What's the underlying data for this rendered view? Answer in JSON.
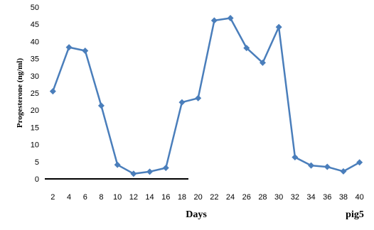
{
  "chart_data": {
    "type": "line",
    "xlabel": "Days",
    "ylabel": "Progesterone (ng/ml)",
    "annotation": "pig5",
    "x": [
      2,
      4,
      6,
      8,
      10,
      12,
      14,
      16,
      18,
      20,
      22,
      24,
      26,
      28,
      30,
      32,
      34,
      36,
      38,
      40
    ],
    "series": [
      {
        "values": [
          25.5,
          38.3,
          37.3,
          21.3,
          4.1,
          1.5,
          2.1,
          3.2,
          22.3,
          23.5,
          46.1,
          46.8,
          38.1,
          33.8,
          44.2,
          6.3,
          3.9,
          3.5,
          2.2,
          4.8
        ]
      }
    ],
    "x_ticks": [
      "2",
      "4",
      "6",
      "8",
      "10",
      "12",
      "14",
      "16",
      "18",
      "20",
      "22",
      "24",
      "26",
      "28",
      "30",
      "32",
      "34",
      "36",
      "38",
      "40"
    ],
    "y_ticks": [
      "0",
      "5",
      "10",
      "15",
      "20",
      "25",
      "30",
      "35",
      "40",
      "45",
      "50"
    ],
    "ylim": [
      0,
      50
    ],
    "grid": false,
    "colors": {
      "series": "#4a7ebb",
      "axis": "#000000"
    }
  }
}
